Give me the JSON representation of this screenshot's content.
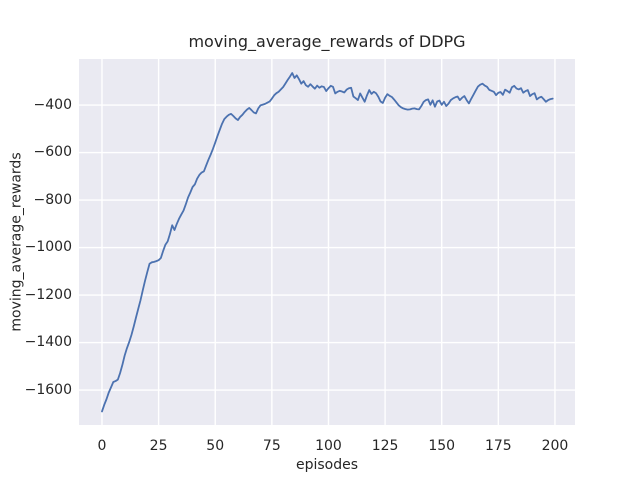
{
  "figure": {
    "title": "moving_average_rewards of DDPG",
    "xlabel": "episodes",
    "ylabel": "moving_average_rewards"
  },
  "chart_data": {
    "type": "line",
    "title": "moving_average_rewards of DDPG",
    "xlabel": "episodes",
    "ylabel": "moving_average_rewards",
    "grid": true,
    "legend": false,
    "xlim": [
      -10.15,
      208.85
    ],
    "ylim": [
      -1747,
      -206
    ],
    "xticks": {
      "values": [
        0,
        25,
        50,
        75,
        100,
        125,
        150,
        175,
        200
      ],
      "labels": [
        "0",
        "25",
        "50",
        "75",
        "100",
        "125",
        "150",
        "175",
        "200"
      ]
    },
    "yticks": {
      "values": [
        -400,
        -600,
        -800,
        -1000,
        -1200,
        -1400,
        -1600
      ],
      "labels": [
        "−400",
        "−600",
        "−800",
        "−1000",
        "−1200",
        "−1400",
        "−1600"
      ]
    },
    "style": {
      "fig_bg": "#ffffff",
      "axes_bg": "#eaeaf2",
      "grid_color": "#ffffff",
      "line_color": "#4c72b0",
      "text_color": "#262626"
    },
    "series": [
      {
        "name": "moving_average_rewards",
        "color": "#4c72b0",
        "x_start": 0,
        "x_step": 1,
        "values": [
          -1690,
          -1662,
          -1638,
          -1610,
          -1588,
          -1566,
          -1562,
          -1556,
          -1528,
          -1494,
          -1455,
          -1424,
          -1398,
          -1368,
          -1333,
          -1295,
          -1258,
          -1222,
          -1180,
          -1140,
          -1103,
          -1068,
          -1062,
          -1060,
          -1057,
          -1053,
          -1044,
          -1014,
          -988,
          -974,
          -943,
          -906,
          -926,
          -901,
          -879,
          -861,
          -844,
          -818,
          -789,
          -768,
          -745,
          -734,
          -710,
          -694,
          -684,
          -679,
          -654,
          -630,
          -608,
          -584,
          -558,
          -530,
          -504,
          -479,
          -459,
          -449,
          -441,
          -437,
          -446,
          -456,
          -463,
          -450,
          -441,
          -429,
          -419,
          -412,
          -421,
          -431,
          -435,
          -414,
          -401,
          -398,
          -395,
          -390,
          -385,
          -373,
          -359,
          -350,
          -344,
          -334,
          -324,
          -309,
          -294,
          -280,
          -265,
          -286,
          -275,
          -291,
          -310,
          -299,
          -316,
          -323,
          -312,
          -322,
          -331,
          -318,
          -327,
          -321,
          -324,
          -341,
          -329,
          -319,
          -323,
          -351,
          -344,
          -340,
          -343,
          -347,
          -335,
          -329,
          -327,
          -364,
          -371,
          -379,
          -351,
          -369,
          -386,
          -359,
          -337,
          -353,
          -344,
          -350,
          -365,
          -385,
          -391,
          -369,
          -354,
          -361,
          -366,
          -377,
          -389,
          -401,
          -409,
          -414,
          -417,
          -419,
          -418,
          -415,
          -414,
          -417,
          -418,
          -404,
          -387,
          -379,
          -376,
          -399,
          -380,
          -407,
          -385,
          -381,
          -399,
          -386,
          -404,
          -394,
          -379,
          -372,
          -367,
          -364,
          -379,
          -369,
          -362,
          -379,
          -393,
          -374,
          -357,
          -339,
          -322,
          -314,
          -310,
          -318,
          -323,
          -336,
          -340,
          -344,
          -358,
          -348,
          -345,
          -357,
          -335,
          -341,
          -348,
          -325,
          -319,
          -330,
          -334,
          -329,
          -348,
          -341,
          -337,
          -362,
          -354,
          -350,
          -376,
          -369,
          -365,
          -375,
          -386,
          -379,
          -375,
          -373
        ]
      }
    ]
  }
}
